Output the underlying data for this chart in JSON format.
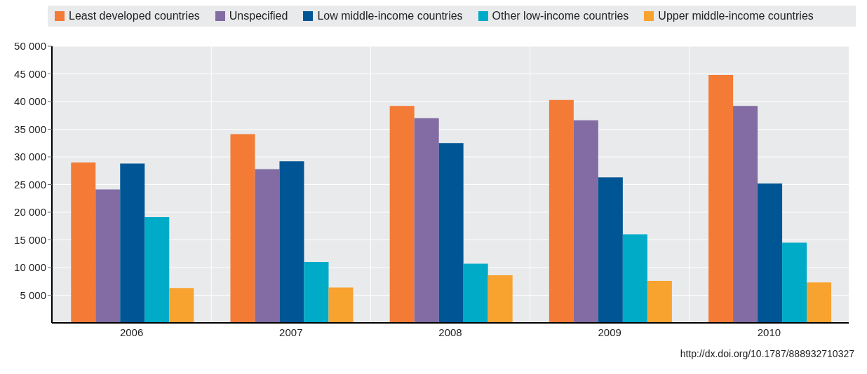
{
  "chart_data": {
    "type": "bar",
    "categories": [
      "2006",
      "2007",
      "2008",
      "2009",
      "2010"
    ],
    "series": [
      {
        "name": "Least developed countries",
        "color": "#f37b36",
        "values": [
          29000,
          34100,
          39200,
          40300,
          44800
        ]
      },
      {
        "name": "Unspecified",
        "color": "#826ca3",
        "values": [
          24100,
          27800,
          37000,
          36600,
          39200
        ]
      },
      {
        "name": "Low middle-income countries",
        "color": "#005694",
        "values": [
          28800,
          29200,
          32500,
          26300,
          25200
        ]
      },
      {
        "name": "Other low-income countries",
        "color": "#00abc8",
        "values": [
          19100,
          11000,
          10700,
          16000,
          14500
        ]
      },
      {
        "name": "Upper middle-income countries",
        "color": "#f8a230",
        "values": [
          6300,
          6400,
          8600,
          7600,
          7300
        ]
      }
    ],
    "ylim": [
      0,
      50000
    ],
    "yticks": [
      {
        "value": 5000,
        "label": "5 000"
      },
      {
        "value": 10000,
        "label": "10 000"
      },
      {
        "value": 15000,
        "label": "15 000"
      },
      {
        "value": 20000,
        "label": "20 000"
      },
      {
        "value": 25000,
        "label": "25 000"
      },
      {
        "value": 30000,
        "label": "30 000"
      },
      {
        "value": 35000,
        "label": "35 000"
      },
      {
        "value": 40000,
        "label": "40 000"
      },
      {
        "value": 45000,
        "label": "45 000"
      },
      {
        "value": 50000,
        "label": "50 000"
      }
    ],
    "grid": true,
    "legend": "top",
    "annotations": [
      "http://dx.doi.org/10.1787/888932710327"
    ]
  }
}
